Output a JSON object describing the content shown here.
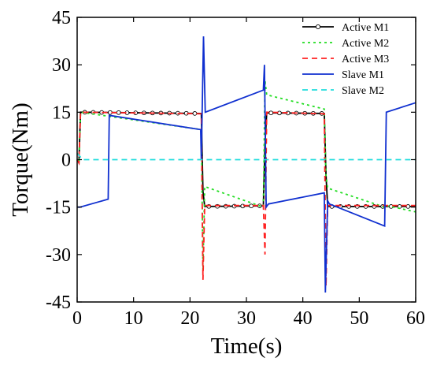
{
  "chart_data": {
    "type": "line",
    "xlabel": "Time(s)",
    "ylabel": "Torque(Nm)",
    "xlim": [
      0,
      60
    ],
    "ylim": [
      -45,
      45
    ],
    "xticks": [
      0,
      10,
      20,
      30,
      40,
      50,
      60
    ],
    "yticks": [
      -45,
      -30,
      -15,
      0,
      15,
      30,
      45
    ],
    "grid": false,
    "legend_position": "top-right",
    "series": [
      {
        "name": "Active M1",
        "color": "#000000",
        "style": "solid-circle-markers",
        "x": [
          0,
          0.3,
          0.6,
          22.0,
          22.3,
          22.6,
          33.0,
          33.3,
          33.6,
          43.8,
          44.1,
          44.4,
          60
        ],
        "y": [
          0,
          -1,
          15,
          14.6,
          -10,
          -14.8,
          -14.6,
          5,
          14.8,
          14.6,
          -5,
          -14.8,
          -14.8
        ]
      },
      {
        "name": "Active M2",
        "color": "#22dd22",
        "style": "dotted",
        "x": [
          0,
          0.3,
          0.6,
          22.0,
          22.3,
          22.6,
          33.0,
          33.3,
          33.6,
          43.8,
          44.1,
          44.4,
          54.5,
          54.8,
          60
        ],
        "y": [
          0,
          -1,
          15,
          9.5,
          -35,
          -8.5,
          -15,
          25,
          20.5,
          16,
          -5,
          -9,
          -15,
          -14.5,
          -16.5
        ]
      },
      {
        "name": "Active M3",
        "color": "#ff2222",
        "style": "dashed",
        "x": [
          0,
          0.3,
          0.6,
          22.0,
          22.3,
          22.6,
          33.0,
          33.3,
          33.6,
          43.8,
          44.1,
          44.4,
          60
        ],
        "y": [
          0,
          -1,
          15,
          14.5,
          -38,
          -14.5,
          -14.5,
          -30,
          15,
          14.5,
          -40,
          -14.5,
          -14.5
        ]
      },
      {
        "name": "Slave M1",
        "color": "#1030d0",
        "style": "solid",
        "x": [
          0,
          0.5,
          5.5,
          5.7,
          21.9,
          22.0,
          22.4,
          22.7,
          33.0,
          33.2,
          33.5,
          33.9,
          43.8,
          44.0,
          44.4,
          44.7,
          54.5,
          54.8,
          60
        ],
        "y": [
          -15,
          -15,
          -12.5,
          14,
          9.5,
          0,
          39,
          15,
          22,
          30,
          -15,
          -14,
          -10.5,
          -42,
          -13,
          -14,
          -21,
          15,
          18
        ]
      },
      {
        "name": "Slave M2",
        "color": "#22dddd",
        "style": "dashed",
        "x": [
          0,
          1,
          60
        ],
        "y": [
          2,
          0,
          0
        ]
      }
    ]
  }
}
